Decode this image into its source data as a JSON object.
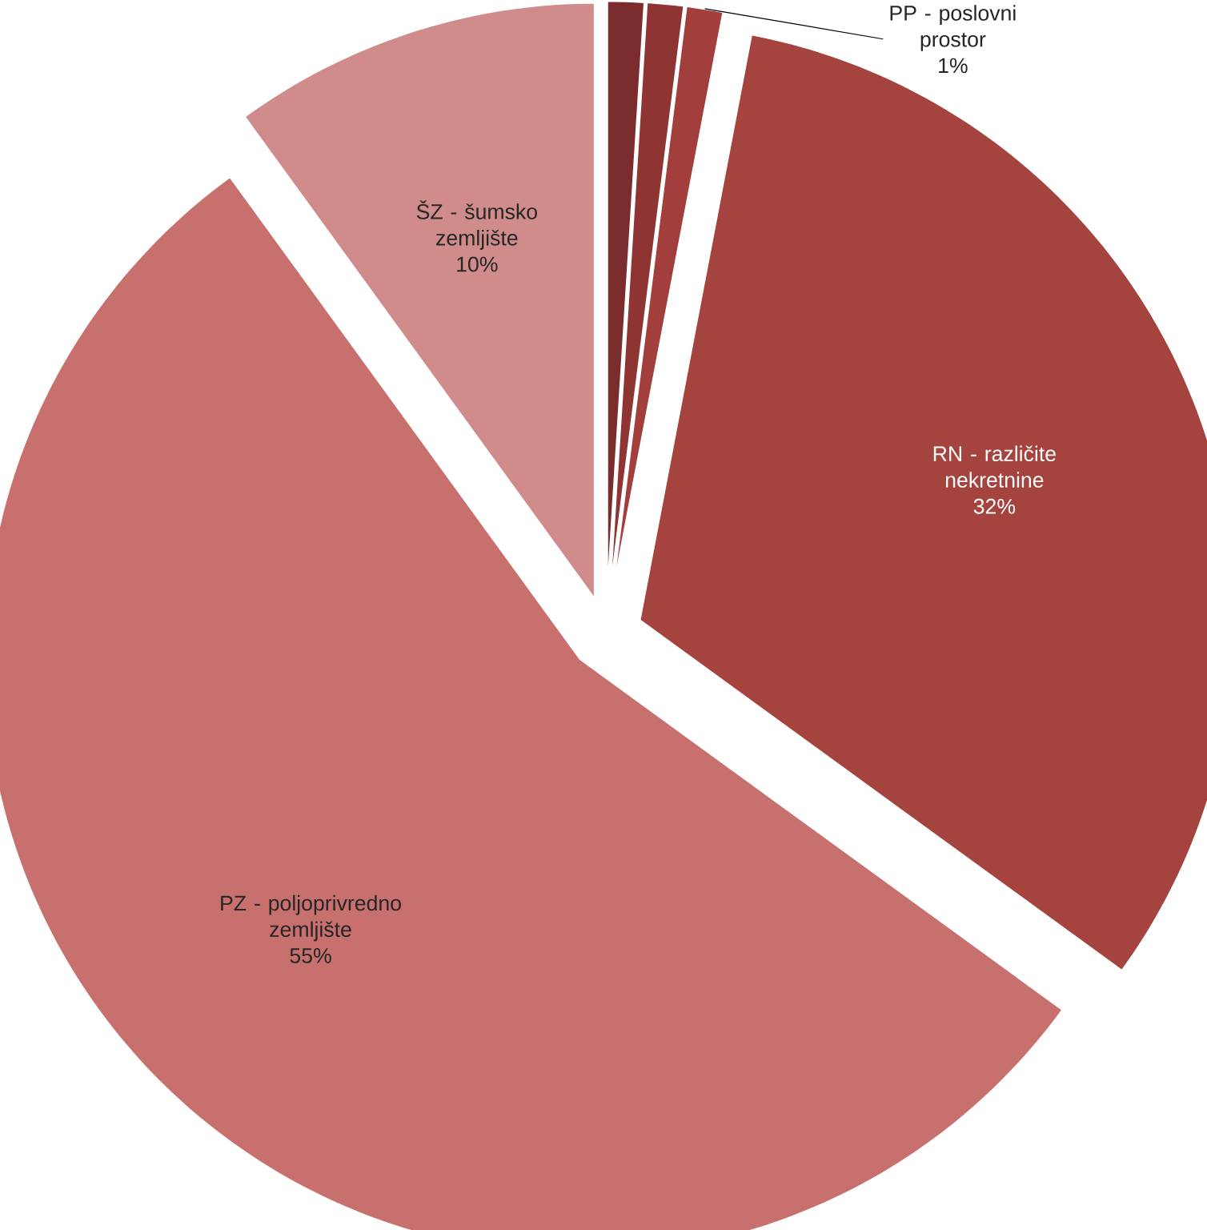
{
  "chart_data": {
    "type": "pie",
    "categories": [
      null,
      null,
      "PP - poslovni prostor",
      "RN - različite nekretnine",
      "PZ - poljoprivredno zemljište",
      "ŠZ - šumsko zemljište"
    ],
    "values": [
      1,
      1,
      1,
      32,
      55,
      10
    ],
    "colors": [
      "#7b2c2c",
      "#8e3534",
      "#a23e3c",
      "#a5433f",
      "#c8706e",
      "#d08c8b"
    ],
    "value_labels": [
      null,
      null,
      "1%",
      "32%",
      "55%",
      "10%"
    ]
  }
}
